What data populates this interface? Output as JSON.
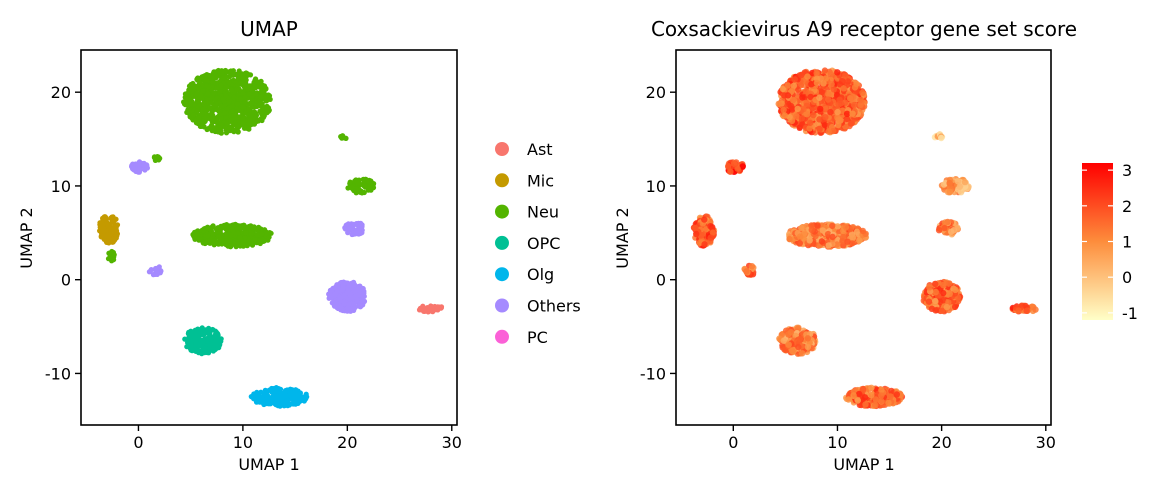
{
  "chart_data": [
    {
      "type": "scatter",
      "title": "UMAP",
      "xlabel": "UMAP 1",
      "ylabel": "UMAP 2",
      "xlim": [
        -5.5,
        30.5
      ],
      "ylim": [
        -15.5,
        24.5
      ],
      "xticks": [
        0,
        10,
        20,
        30
      ],
      "yticks": [
        -10,
        0,
        10,
        20
      ],
      "xtick_labels": [
        "0",
        "10",
        "20",
        "30"
      ],
      "ytick_labels": [
        "-10",
        "0",
        "10",
        "20"
      ],
      "legend": {
        "position": "right",
        "entries": [
          {
            "label": "Ast",
            "color": "#F8766D"
          },
          {
            "label": "Mic",
            "color": "#C49A00"
          },
          {
            "label": "Neu",
            "color": "#53B400"
          },
          {
            "label": "OPC",
            "color": "#00C094"
          },
          {
            "label": "Olg",
            "color": "#00B6EB"
          },
          {
            "label": "Others",
            "color": "#A58AFF"
          },
          {
            "label": "PC",
            "color": "#FB61D7"
          }
        ]
      },
      "clusters": [
        {
          "group": "Neu",
          "cx": 8.5,
          "cy": 19.0,
          "rx": 4.2,
          "ry": 3.4
        },
        {
          "group": "Neu",
          "cx": 9.0,
          "cy": 4.7,
          "rx": 3.8,
          "ry": 1.2
        },
        {
          "group": "Neu",
          "cx": 21.3,
          "cy": 10.0,
          "rx": 1.3,
          "ry": 0.8
        },
        {
          "group": "Neu",
          "cx": 19.7,
          "cy": 15.3,
          "rx": 0.4,
          "ry": 0.3
        },
        {
          "group": "Neu",
          "cx": 1.7,
          "cy": 13.0,
          "rx": 0.4,
          "ry": 0.3
        },
        {
          "group": "Neu",
          "cx": -2.6,
          "cy": 2.5,
          "rx": 0.3,
          "ry": 0.6
        },
        {
          "group": "Mic",
          "cx": -2.8,
          "cy": 5.4,
          "rx": 1.0,
          "ry": 1.5
        },
        {
          "group": "Others",
          "cx": 0.1,
          "cy": 12.0,
          "rx": 0.8,
          "ry": 0.6
        },
        {
          "group": "Others",
          "cx": 1.6,
          "cy": 1.0,
          "rx": 0.6,
          "ry": 0.5
        },
        {
          "group": "Others",
          "cx": 20.7,
          "cy": 5.5,
          "rx": 1.0,
          "ry": 0.7
        },
        {
          "group": "Others",
          "cx": 20.0,
          "cy": -1.8,
          "rx": 1.8,
          "ry": 1.6
        },
        {
          "group": "OPC",
          "cx": 6.2,
          "cy": -6.5,
          "rx": 1.8,
          "ry": 1.4
        },
        {
          "group": "Olg",
          "cx": 13.5,
          "cy": -12.5,
          "rx": 2.7,
          "ry": 1.0
        },
        {
          "group": "Ast",
          "cx": 28.0,
          "cy": -3.1,
          "rx": 1.3,
          "ry": 0.35
        }
      ]
    },
    {
      "type": "scatter",
      "title": "Coxsackievirus A9 receptor gene set score",
      "xlabel": "UMAP 1",
      "ylabel": "UMAP 2",
      "xlim": [
        -5.5,
        30.5
      ],
      "ylim": [
        -15.5,
        24.5
      ],
      "xticks": [
        0,
        10,
        20,
        30
      ],
      "yticks": [
        -10,
        0,
        10,
        20
      ],
      "xtick_labels": [
        "0",
        "10",
        "20",
        "30"
      ],
      "ytick_labels": [
        "-10",
        "0",
        "10",
        "20"
      ],
      "colorbar": {
        "position": "right",
        "min": -1.2,
        "max": 3.2,
        "ticks": [
          3,
          2,
          1,
          0,
          -1
        ],
        "tick_labels": [
          "3",
          "2",
          "1",
          "0",
          "-1"
        ],
        "low_color": "#FFFFC8",
        "mid_color": "#FD8D3C",
        "high_color": "#FF0000"
      },
      "clusters": [
        {
          "cx": 8.5,
          "cy": 19.0,
          "rx": 4.2,
          "ry": 3.4,
          "score": 1.7
        },
        {
          "cx": 9.0,
          "cy": 4.7,
          "rx": 3.8,
          "ry": 1.2,
          "score": 1.2
        },
        {
          "cx": 21.3,
          "cy": 10.0,
          "rx": 1.3,
          "ry": 0.8,
          "score": 0.6
        },
        {
          "cx": 19.7,
          "cy": 15.3,
          "rx": 0.4,
          "ry": 0.3,
          "score": 0.3
        },
        {
          "cx": 0.2,
          "cy": 12.0,
          "rx": 0.8,
          "ry": 0.6,
          "score": 2.3
        },
        {
          "cx": 1.6,
          "cy": 1.0,
          "rx": 0.6,
          "ry": 0.5,
          "score": 1.6
        },
        {
          "cx": -2.8,
          "cy": 5.2,
          "rx": 1.0,
          "ry": 1.6,
          "score": 1.8
        },
        {
          "cx": 20.7,
          "cy": 5.5,
          "rx": 1.0,
          "ry": 0.7,
          "score": 1.2
        },
        {
          "cx": 20.0,
          "cy": -1.8,
          "rx": 1.8,
          "ry": 1.6,
          "score": 1.6
        },
        {
          "cx": 6.2,
          "cy": -6.5,
          "rx": 1.8,
          "ry": 1.4,
          "score": 1.1
        },
        {
          "cx": 13.5,
          "cy": -12.5,
          "rx": 2.7,
          "ry": 1.0,
          "score": 1.6
        },
        {
          "cx": 28.0,
          "cy": -3.1,
          "rx": 1.3,
          "ry": 0.35,
          "score": 2.0
        }
      ]
    }
  ]
}
